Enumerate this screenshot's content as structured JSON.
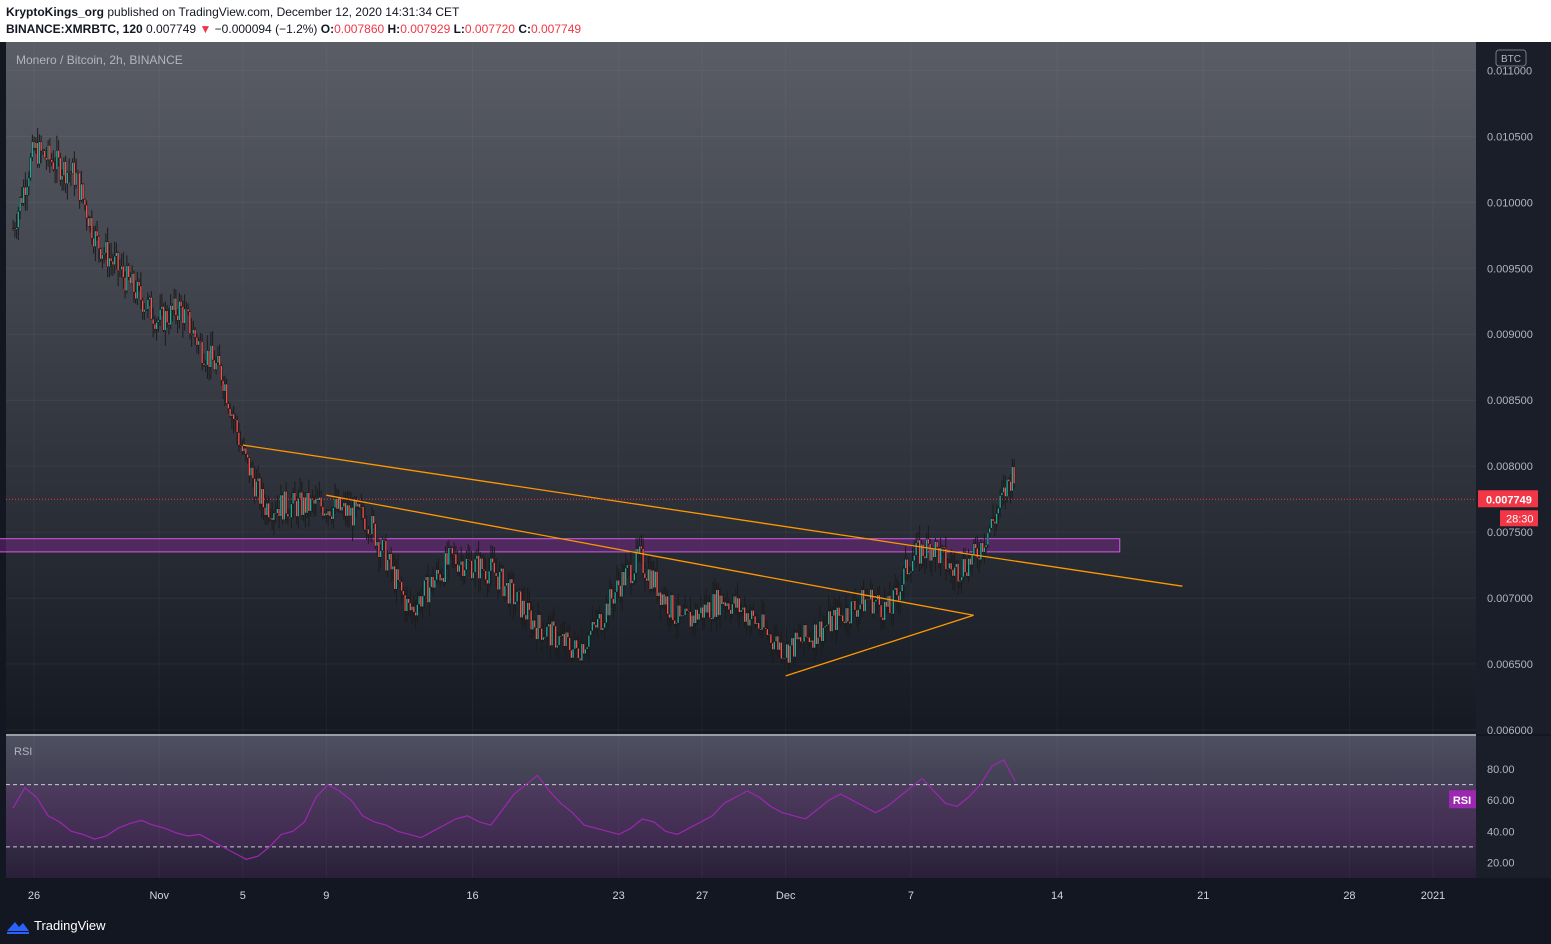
{
  "header": {
    "author": "KryptoKings_org",
    "published_text": "published on TradingView.com, December 12, 2020 14:31:34 CET",
    "symbol": "BINANCE:XMRBTC, 120",
    "last": "0.007749",
    "change_arrow": "▼",
    "change": "−0.000094 (−1.2%)",
    "o_label": "O:",
    "o_value": "0.007860",
    "h_label": "H:",
    "h_value": "0.007929",
    "l_label": "L:",
    "l_value": "0.007720",
    "c_label": "C:",
    "c_value": "0.007749"
  },
  "chart_data": {
    "type": "candlestick",
    "title": "Monero / Bitcoin, 2h, BINANCE",
    "currency_badge": "BTC",
    "y_ticks": [
      "0.011000",
      "0.010500",
      "0.010000",
      "0.009500",
      "0.009000",
      "0.008500",
      "0.008000",
      "0.007500",
      "0.007000",
      "0.006500",
      "0.006000"
    ],
    "ylim": [
      0.006,
      0.0112
    ],
    "x_ticks": [
      "26",
      "Nov",
      "5",
      "9",
      "16",
      "23",
      "27",
      "Dec",
      "7",
      "14",
      "21",
      "28",
      "2021"
    ],
    "last_price": "0.007749",
    "countdown": "28:30",
    "price_path": [
      {
        "x": "Oct 25",
        "y": 0.0098
      },
      {
        "x": "Oct 26",
        "y": 0.0104
      },
      {
        "x": "Oct 28",
        "y": 0.0102
      },
      {
        "x": "Oct 29",
        "y": 0.0097
      },
      {
        "x": "Oct 31",
        "y": 0.0093
      },
      {
        "x": "Nov 1",
        "y": 0.0091
      },
      {
        "x": "Nov 2",
        "y": 0.0092
      },
      {
        "x": "Nov 3",
        "y": 0.0089
      },
      {
        "x": "Nov 4",
        "y": 0.0087
      },
      {
        "x": "Nov 5",
        "y": 0.0081
      },
      {
        "x": "Nov 6",
        "y": 0.0077
      },
      {
        "x": "Nov 8",
        "y": 0.0077
      },
      {
        "x": "Nov 9",
        "y": 0.0077
      },
      {
        "x": "Nov 11",
        "y": 0.0076
      },
      {
        "x": "Nov 13",
        "y": 0.0069
      },
      {
        "x": "Nov 15",
        "y": 0.0073
      },
      {
        "x": "Nov 17",
        "y": 0.0072
      },
      {
        "x": "Nov 19",
        "y": 0.0068
      },
      {
        "x": "Nov 21",
        "y": 0.0066
      },
      {
        "x": "Nov 22",
        "y": 0.0068
      },
      {
        "x": "Nov 23",
        "y": 0.0071
      },
      {
        "x": "Nov 24",
        "y": 0.0073
      },
      {
        "x": "Nov 26",
        "y": 0.0068
      },
      {
        "x": "Nov 28",
        "y": 0.007
      },
      {
        "x": "Nov 29",
        "y": 0.0069
      },
      {
        "x": "Dec 1",
        "y": 0.0066
      },
      {
        "x": "Dec 3",
        "y": 0.0068
      },
      {
        "x": "Dec 5",
        "y": 0.007
      },
      {
        "x": "Dec 6",
        "y": 0.0069
      },
      {
        "x": "Dec 7",
        "y": 0.0073
      },
      {
        "x": "Dec 8",
        "y": 0.0074
      },
      {
        "x": "Dec 9",
        "y": 0.0072
      },
      {
        "x": "Dec 10",
        "y": 0.0073
      },
      {
        "x": "Dec 11",
        "y": 0.0076
      },
      {
        "x": "Dec 12",
        "y": 0.008
      },
      {
        "x": "Dec 12",
        "y": 0.007749
      }
    ],
    "zone": {
      "y_low": 0.00735,
      "y_high": 0.00745,
      "x_start": "Oct 24",
      "x_end": "Dec 17"
    },
    "trendlines": [
      {
        "from": {
          "x": "Nov 5",
          "y": 0.00816
        },
        "to": {
          "x": "Dec 20",
          "y": 0.00709
        }
      },
      {
        "from": {
          "x": "Nov 9",
          "y": 0.00778
        },
        "to": {
          "x": "Dec 10",
          "y": 0.00687
        }
      },
      {
        "from": {
          "x": "Dec 1",
          "y": 0.00641
        },
        "to": {
          "x": "Dec 10",
          "y": 0.00687
        }
      }
    ],
    "rsi": {
      "label": "RSI",
      "badge": "RSI",
      "y_ticks": [
        "80.00",
        "60.00",
        "40.00",
        "20.00"
      ],
      "ylim": [
        10,
        100
      ],
      "upper_band": 70,
      "lower_band": 30,
      "values": [
        55,
        68,
        62,
        50,
        46,
        40,
        38,
        35,
        37,
        42,
        45,
        47,
        44,
        42,
        39,
        37,
        38,
        34,
        30,
        26,
        22,
        24,
        30,
        38,
        40,
        46,
        62,
        70,
        66,
        60,
        50,
        46,
        44,
        40,
        38,
        36,
        40,
        44,
        48,
        50,
        46,
        44,
        54,
        64,
        70,
        76,
        66,
        58,
        52,
        44,
        42,
        40,
        38,
        42,
        48,
        46,
        40,
        38,
        42,
        46,
        50,
        58,
        62,
        66,
        62,
        56,
        52,
        50,
        48,
        54,
        60,
        64,
        60,
        56,
        52,
        56,
        62,
        68,
        74,
        66,
        58,
        56,
        62,
        70,
        82,
        86,
        72
      ]
    },
    "colors": {
      "up": "#26a69a",
      "down": "#ef5350",
      "trendline": "#ff9800",
      "zone": "#9c27b0",
      "rsi_line": "#9c27b0",
      "price_label": "#f23645"
    }
  },
  "footer": {
    "brand": "TradingView"
  }
}
